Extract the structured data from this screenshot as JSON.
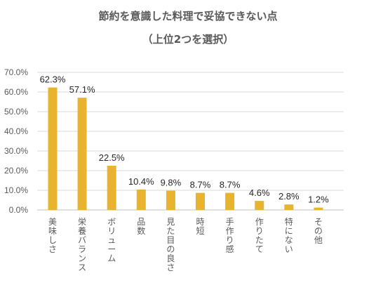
{
  "chart_data": {
    "type": "bar",
    "title": "節約を意識した料理で妥協できない点",
    "subtitle": "（上位2つを選択）",
    "categories": [
      "美味しさ",
      "栄養バランス",
      "ボリューム",
      "品数",
      "見た目の良さ",
      "時短",
      "手作り感",
      "作りたて",
      "特にない",
      "その他"
    ],
    "values": [
      62.3,
      57.1,
      22.5,
      10.4,
      9.8,
      8.7,
      8.7,
      4.6,
      2.8,
      1.2
    ],
    "data_labels": [
      "62.3%",
      "57.1%",
      "22.5%",
      "10.4%",
      "9.8%",
      "8.7%",
      "8.7%",
      "4.6%",
      "2.8%",
      "1.2%"
    ],
    "y_ticks": [
      "0.0%",
      "10.0%",
      "20.0%",
      "30.0%",
      "40.0%",
      "50.0%",
      "60.0%",
      "70.0%"
    ],
    "ylim": [
      0,
      70
    ],
    "grid": true,
    "legend": "none",
    "bar_color": "#e8b430"
  }
}
